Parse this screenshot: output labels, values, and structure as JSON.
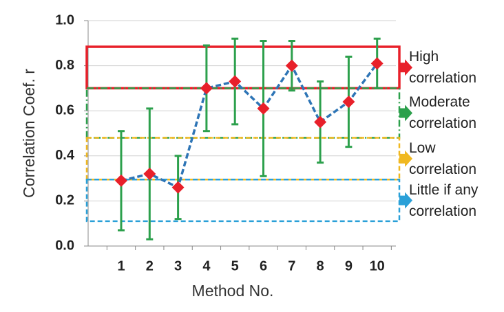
{
  "chart_data": {
    "type": "line",
    "x_label": "Method No.",
    "y_label": "Correlation Coef. r",
    "categories": [
      "1",
      "2",
      "3",
      "4",
      "5",
      "6",
      "7",
      "8",
      "9",
      "10"
    ],
    "values": [
      0.29,
      0.32,
      0.26,
      0.7,
      0.73,
      0.61,
      0.8,
      0.55,
      0.64,
      0.81
    ],
    "errors": [
      0.22,
      0.29,
      0.14,
      0.19,
      0.19,
      0.3,
      0.11,
      0.18,
      0.2,
      0.11
    ],
    "line_color": "#2e75b6",
    "marker_color": "#e8202a",
    "error_color": "#2ca04c",
    "ylim": [
      0,
      1
    ],
    "yticks": [
      {
        "value": 0,
        "label": "0.0"
      },
      0.2,
      0.4,
      0.6,
      0.8,
      {
        "value": 1,
        "label": "1.0"
      }
    ],
    "grid": true,
    "bands": [
      {
        "label": "High correlation",
        "range": [
          0.7,
          0.884
        ],
        "color": "#e8202a",
        "style": "solid"
      },
      {
        "label": "Moderate correlation",
        "range": [
          0.48,
          0.7
        ],
        "color": "#2ca04c",
        "style": "dashdot"
      },
      {
        "label": "Low correlation",
        "range": [
          0.295,
          0.48
        ],
        "color": "#f0b820",
        "style": "dash"
      },
      {
        "label": "Little if any correlation",
        "range": [
          0.11,
          0.295
        ],
        "color": "#2aa0d8",
        "style": "dash"
      }
    ]
  }
}
